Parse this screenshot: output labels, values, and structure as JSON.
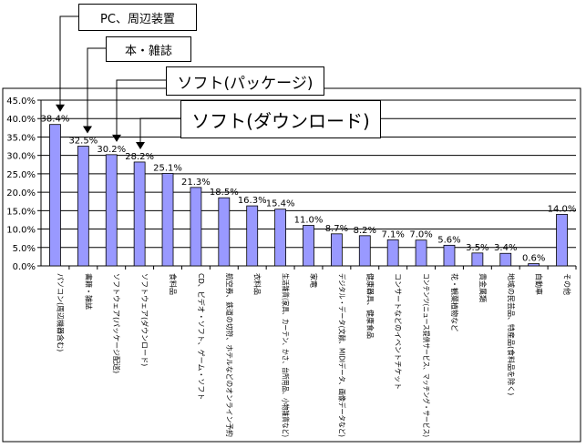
{
  "chart_data": {
    "type": "bar",
    "title": "",
    "xlabel": "",
    "ylabel": "",
    "ylim": [
      0,
      45
    ],
    "y_ticks": [
      "0.0%",
      "5.0%",
      "10.0%",
      "15.0%",
      "20.0%",
      "25.0%",
      "30.0%",
      "35.0%",
      "40.0%",
      "45.0%"
    ],
    "grid": true,
    "bar_color": "#9999ff",
    "categories": [
      "パソコン(周辺機器含む)",
      "書籍・雑誌",
      "ソフトウェア(パッケージ配送)",
      "ソフトウェア(ダウンロード)",
      "食料品",
      "CD、ビデオ・ソフト、ゲーム・ソフト",
      "航空券、鉄道の切符、ホテルなどのオンライン予約",
      "衣料品",
      "生活雑貨(家具、カーテン、かさ、台所用品、小物雑貨など)",
      "家電",
      "デジタル・データ(文献、MIDIデータ、画像データなど)",
      "健康器具、健康食品",
      "コンサートなどのイベントチケット",
      "コンテンツ(ニュース提供サービス、マッチング・サービス)",
      "花・観葉植物など",
      "貴金属類",
      "地域の民芸品、特産品(食料品を除く)",
      "自動車",
      "その他"
    ],
    "values": [
      38.4,
      32.5,
      30.2,
      28.2,
      25.1,
      21.3,
      18.5,
      16.3,
      15.4,
      11.0,
      8.7,
      8.2,
      7.1,
      7.0,
      5.6,
      3.5,
      3.4,
      0.6,
      14.0
    ],
    "value_labels": [
      "38.4%",
      "32.5%",
      "30.2%",
      "28.2%",
      "25.1%",
      "21.3%",
      "18.5%",
      "16.3%",
      "15.4%",
      "11.0%",
      "8.7%",
      "8.2%",
      "7.1%",
      "7.0%",
      "5.6%",
      "3.5%",
      "3.4%",
      "0.6%",
      "14.0%"
    ],
    "callouts": [
      {
        "label": "PC、周辺装置",
        "bar": 0
      },
      {
        "label": "本・雑誌",
        "bar": 1
      },
      {
        "label": "ソフト(パッケージ)",
        "bar": 2
      },
      {
        "label": "ソフト(ダウンロード)",
        "bar": 3
      }
    ]
  }
}
